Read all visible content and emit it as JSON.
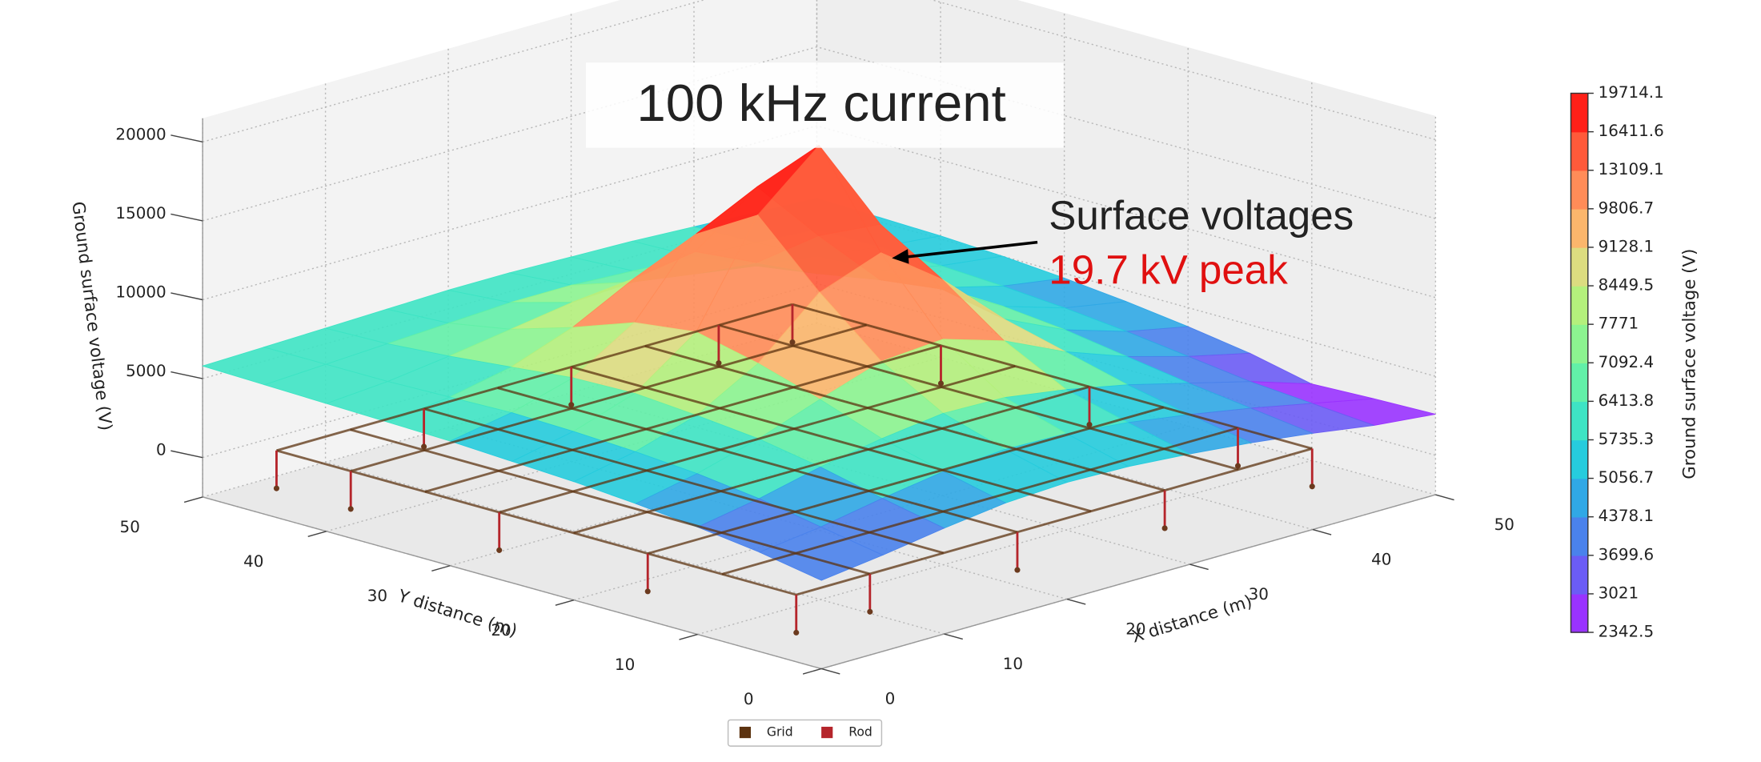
{
  "chart_data": {
    "type": "surface3d",
    "title": "100 kHz current",
    "annotation": "Surface voltages",
    "annotation_highlight": "19.7 kV peak",
    "xlabel": "X distance (m)",
    "ylabel": "Y distance (m)",
    "zlabel": "Ground surface voltage (V)",
    "x": [
      0,
      5,
      10,
      15,
      20,
      25,
      30,
      35,
      40,
      45,
      50
    ],
    "y": [
      0,
      5,
      10,
      15,
      20,
      25,
      30,
      35,
      40,
      45,
      50
    ],
    "z": [
      [
        3100,
        3600,
        4200,
        4700,
        4900,
        4800,
        4500,
        4100,
        3600,
        3000,
        2600
      ],
      [
        3800,
        4300,
        5000,
        5600,
        5900,
        5800,
        5400,
        4800,
        4100,
        3300,
        2500
      ],
      [
        4300,
        5000,
        5900,
        6600,
        7100,
        7000,
        6400,
        5600,
        4600,
        3600,
        2342.5
      ],
      [
        4700,
        5500,
        6600,
        8000,
        9300,
        9600,
        8400,
        6600,
        5200,
        4100,
        3200
      ],
      [
        5000,
        5800,
        7000,
        9200,
        12600,
        14000,
        11200,
        7600,
        5800,
        4600,
        3800
      ],
      [
        5200,
        6000,
        7300,
        10100,
        16400,
        19714.1,
        13600,
        8400,
        6200,
        5000,
        4300
      ],
      [
        5400,
        6100,
        7200,
        9600,
        14100,
        16000,
        11800,
        7900,
        6300,
        5300,
        4700
      ],
      [
        5500,
        6000,
        6800,
        8200,
        10200,
        10800,
        9000,
        7200,
        6300,
        5500,
        5000
      ],
      [
        5600,
        5900,
        6400,
        7000,
        7600,
        7800,
        7200,
        6600,
        6100,
        5600,
        5200
      ],
      [
        5700,
        5900,
        6100,
        6300,
        6500,
        6500,
        6300,
        6100,
        5900,
        5600,
        5300
      ],
      [
        5800,
        5900,
        6000,
        6100,
        6200,
        6200,
        6100,
        6000,
        5800,
        5600,
        5400
      ]
    ],
    "xlim": [
      0,
      50
    ],
    "ylim": [
      0,
      50
    ],
    "zlim": [
      -2500,
      21500
    ],
    "xticks": [
      0,
      10,
      20,
      30,
      40,
      50
    ],
    "yticks": [
      0,
      10,
      20,
      30,
      40,
      50
    ],
    "zticks": [
      0,
      5000,
      10000,
      15000,
      20000
    ],
    "grid": true,
    "colorbar": {
      "label": "Ground surface voltage (V)",
      "levels": [
        2342.5,
        3021,
        3699.6,
        4378.1,
        5056.7,
        5735.3,
        6413.8,
        7092.4,
        7771,
        8449.5,
        9128.1,
        9806.7,
        13109.1,
        16411.6,
        19714.1
      ],
      "colors": [
        "#9933ff",
        "#6b5cf5",
        "#4a82ec",
        "#30a8e6",
        "#26ccdd",
        "#3ee4c4",
        "#62f0a8",
        "#8cf490",
        "#b4f07c",
        "#dcdc80",
        "#fbb66c",
        "#ff8c58",
        "#ff5a3a",
        "#ff2018"
      ]
    },
    "conductors": [
      {
        "name": "Grid",
        "color": "#5c3310",
        "x_lines": [
          4,
          10,
          16,
          22,
          28,
          34,
          40,
          46
        ],
        "y_lines": [
          6,
          12,
          18,
          24,
          30,
          36,
          42,
          48
        ],
        "z": 0
      },
      {
        "name": "Rod",
        "color": "#b5252b",
        "points": [
          [
            4,
            6
          ],
          [
            4,
            18
          ],
          [
            4,
            30
          ],
          [
            4,
            42
          ],
          [
            4,
            48
          ],
          [
            16,
            48
          ],
          [
            28,
            48
          ],
          [
            40,
            48
          ],
          [
            46,
            48
          ],
          [
            46,
            36
          ],
          [
            46,
            24
          ],
          [
            46,
            12
          ],
          [
            46,
            6
          ],
          [
            34,
            6
          ],
          [
            22,
            6
          ],
          [
            10,
            6
          ]
        ],
        "z": [
          0,
          -2400
        ]
      }
    ],
    "legend": "bottom"
  }
}
